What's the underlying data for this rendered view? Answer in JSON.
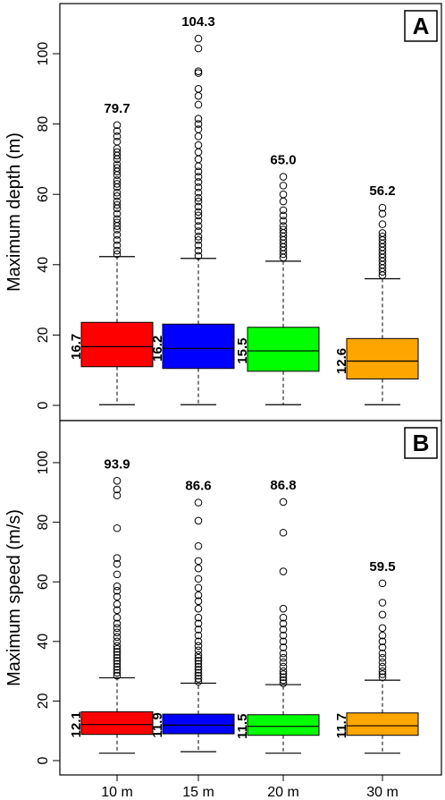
{
  "chart_data": [
    {
      "type": "boxplot",
      "panel_label": "A",
      "ylabel": "Maximum depth (m)",
      "ylim": [
        0,
        110
      ],
      "yticks": [
        0,
        20,
        40,
        60,
        80,
        100
      ],
      "categories": [
        "10 m",
        "15 m",
        "20 m",
        "30 m"
      ],
      "colors": [
        "#ff0000",
        "#0000ff",
        "#00ff00",
        "#ffa500"
      ],
      "grid": false,
      "boxes": [
        {
          "q1": 11.0,
          "median": 16.7,
          "q3": 23.6,
          "whisker_low": 0.2,
          "whisker_high": 42.3,
          "median_label": "16.7",
          "max_label": "79.7",
          "outliers": [
            43.0,
            44.0,
            45.5,
            47.0,
            48.5,
            50.0,
            51.0,
            52.0,
            53.0,
            54.5,
            56.0,
            57.0,
            58.0,
            59.5,
            60.5,
            62.0,
            63.0,
            64.0,
            65.5,
            66.5,
            67.5,
            68.5,
            70.0,
            71.0,
            72.0,
            73.0,
            75.0,
            76.5,
            78.0,
            79.7
          ]
        },
        {
          "q1": 10.5,
          "median": 16.2,
          "q3": 23.1,
          "whisker_low": 0.2,
          "whisker_high": 41.8,
          "median_label": "16.2",
          "max_label": "104.3",
          "outliers": [
            42.5,
            44.0,
            45.5,
            47.0,
            48.0,
            49.5,
            51.0,
            52.5,
            54.0,
            55.0,
            56.5,
            58.0,
            59.0,
            60.5,
            62.0,
            63.5,
            65.0,
            66.5,
            68.0,
            70.0,
            72.0,
            74.0,
            76.5,
            78.5,
            80.0,
            81.5,
            85.5,
            88.0,
            90.0,
            94.5,
            95.0,
            101.5,
            104.3
          ]
        },
        {
          "q1": 9.7,
          "median": 15.5,
          "q3": 22.2,
          "whisker_low": 0.2,
          "whisker_high": 41.0,
          "median_label": "15.5",
          "max_label": "65.0",
          "outliers": [
            42.0,
            43.0,
            44.0,
            45.0,
            46.0,
            47.0,
            48.0,
            49.0,
            50.0,
            51.0,
            52.5,
            54.0,
            55.5,
            58.0,
            60.0,
            62.5,
            65.0
          ]
        },
        {
          "q1": 7.5,
          "median": 12.6,
          "q3": 19.0,
          "whisker_low": 0.2,
          "whisker_high": 36.0,
          "median_label": "12.6",
          "max_label": "56.2",
          "outliers": [
            37.0,
            38.0,
            39.0,
            40.0,
            41.0,
            42.0,
            43.0,
            44.0,
            45.0,
            46.0,
            47.0,
            48.0,
            49.0,
            51.5,
            54.5,
            56.2
          ]
        }
      ]
    },
    {
      "type": "boxplot",
      "panel_label": "B",
      "ylabel": "Maximum speed (m/s)",
      "xlabel": "",
      "ylim": [
        0,
        110
      ],
      "yticks": [
        0,
        20,
        40,
        60,
        80,
        100
      ],
      "categories": [
        "10 m",
        "15 m",
        "20 m",
        "30 m"
      ],
      "colors": [
        "#ff0000",
        "#0000ff",
        "#00ff00",
        "#ffa500"
      ],
      "grid": false,
      "boxes": [
        {
          "q1": 8.8,
          "median": 12.1,
          "q3": 16.4,
          "whisker_low": 2.5,
          "whisker_high": 27.8,
          "median_label": "12.1",
          "max_label": "93.9",
          "outliers": [
            28.5,
            29.5,
            30.5,
            31.5,
            32.5,
            33.5,
            34.5,
            35.5,
            36.5,
            37.5,
            38.5,
            40.0,
            41.5,
            43.0,
            44.5,
            46.0,
            48.0,
            50.5,
            52.5,
            55.0,
            57.0,
            58.5,
            62.5,
            66.0,
            68.0,
            78.0,
            89.0,
            91.0,
            93.9
          ]
        },
        {
          "q1": 9.0,
          "median": 11.9,
          "q3": 15.6,
          "whisker_low": 3.0,
          "whisker_high": 26.0,
          "median_label": "11.9",
          "max_label": "86.6",
          "outliers": [
            26.5,
            27.5,
            28.5,
            29.5,
            30.5,
            31.5,
            32.5,
            33.5,
            34.5,
            35.5,
            37.0,
            38.5,
            40.0,
            42.0,
            44.0,
            46.0,
            48.0,
            51.0,
            53.5,
            55.5,
            58.0,
            61.0,
            64.5,
            67.0,
            72.0,
            80.5,
            86.6
          ]
        },
        {
          "q1": 8.5,
          "median": 11.5,
          "q3": 15.4,
          "whisker_low": 2.5,
          "whisker_high": 25.5,
          "median_label": "11.5",
          "max_label": "86.8",
          "outliers": [
            26.0,
            27.0,
            28.0,
            29.0,
            30.0,
            31.5,
            33.0,
            34.5,
            36.0,
            38.0,
            40.0,
            42.0,
            44.0,
            46.0,
            48.0,
            51.0,
            63.5,
            76.5,
            86.8
          ]
        },
        {
          "q1": 8.5,
          "median": 11.7,
          "q3": 16.0,
          "whisker_low": 2.5,
          "whisker_high": 27.0,
          "median_label": "11.7",
          "max_label": "59.5",
          "outliers": [
            28.0,
            29.0,
            30.0,
            31.5,
            33.0,
            34.5,
            36.0,
            38.0,
            40.0,
            42.0,
            44.5,
            49.0,
            53.0,
            59.5
          ]
        }
      ]
    }
  ]
}
